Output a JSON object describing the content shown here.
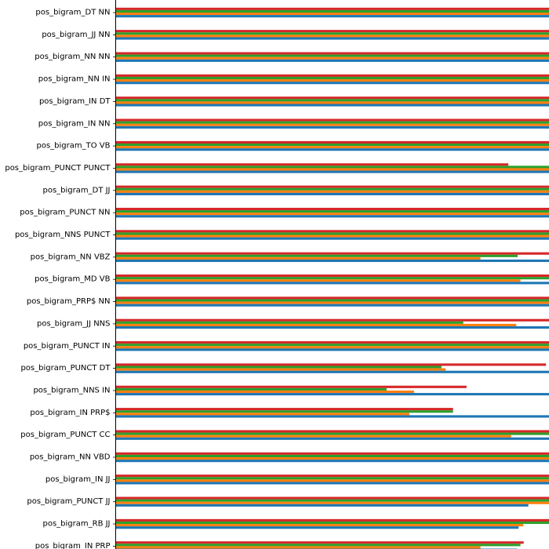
{
  "chart_data": {
    "type": "bar",
    "orientation": "horizontal",
    "categories": [
      "pos_bigram_DT NN",
      "pos_bigram_JJ NN",
      "pos_bigram_NN NN",
      "pos_bigram_NN IN",
      "pos_bigram_IN DT",
      "pos_bigram_IN NN",
      "pos_bigram_TO VB",
      "pos_bigram_PUNCT PUNCT",
      "pos_bigram_DT JJ",
      "pos_bigram_PUNCT NN",
      "pos_bigram_NNS PUNCT",
      "pos_bigram_NN VBZ",
      "pos_bigram_MD VB",
      "pos_bigram_PRP$ NN",
      "pos_bigram_JJ NNS",
      "pos_bigram_PUNCT IN",
      "pos_bigram_PUNCT DT",
      "pos_bigram_NNS IN",
      "pos_bigram_IN PRP$",
      "pos_bigram_PUNCT CC",
      "pos_bigram_NN VBD",
      "pos_bigram_IN JJ",
      "pos_bigram_PUNCT JJ",
      "pos_bigram_RB JJ",
      "pos_bigram_IN PRP"
    ],
    "series": [
      {
        "color": "#d62728",
        "values": [
          1.0,
          1.0,
          1.0,
          1.0,
          1.0,
          1.0,
          1.0,
          0.845,
          1.0,
          1.0,
          1.0,
          0.992,
          1.0,
          1.0,
          0.962,
          1.0,
          0.926,
          0.755,
          0.726,
          0.943,
          1.0,
          0.934,
          0.945,
          0.951,
          0.878
        ]
      },
      {
        "color": "#2ca02c",
        "values": [
          1.0,
          1.0,
          1.0,
          1.0,
          1.0,
          1.0,
          1.0,
          1.0,
          1.0,
          1.0,
          0.972,
          0.865,
          1.0,
          1.0,
          0.748,
          0.996,
          0.701,
          0.583,
          0.726,
          0.94,
          1.0,
          0.955,
          1.0,
          1.0,
          0.871
        ]
      },
      {
        "color": "#ff7f0e",
        "values": [
          1.0,
          1.0,
          1.0,
          1.0,
          1.0,
          1.0,
          1.0,
          1.0,
          1.0,
          1.0,
          1.0,
          0.785,
          0.871,
          1.0,
          0.862,
          0.989,
          0.71,
          0.642,
          0.632,
          0.851,
          1.0,
          1.0,
          1.0,
          0.877,
          0.785
        ]
      },
      {
        "color": "#1f77b4",
        "values": [
          1.0,
          1.0,
          1.0,
          1.0,
          1.0,
          1.0,
          1.0,
          1.0,
          1.0,
          1.0,
          1.0,
          1.0,
          1.0,
          1.0,
          1.0,
          1.0,
          1.0,
          1.0,
          1.0,
          0.984,
          0.973,
          0.973,
          0.888,
          0.867,
          0.864
        ]
      }
    ],
    "xlim": [
      0,
      1
    ],
    "grid": false,
    "legend": "none"
  }
}
